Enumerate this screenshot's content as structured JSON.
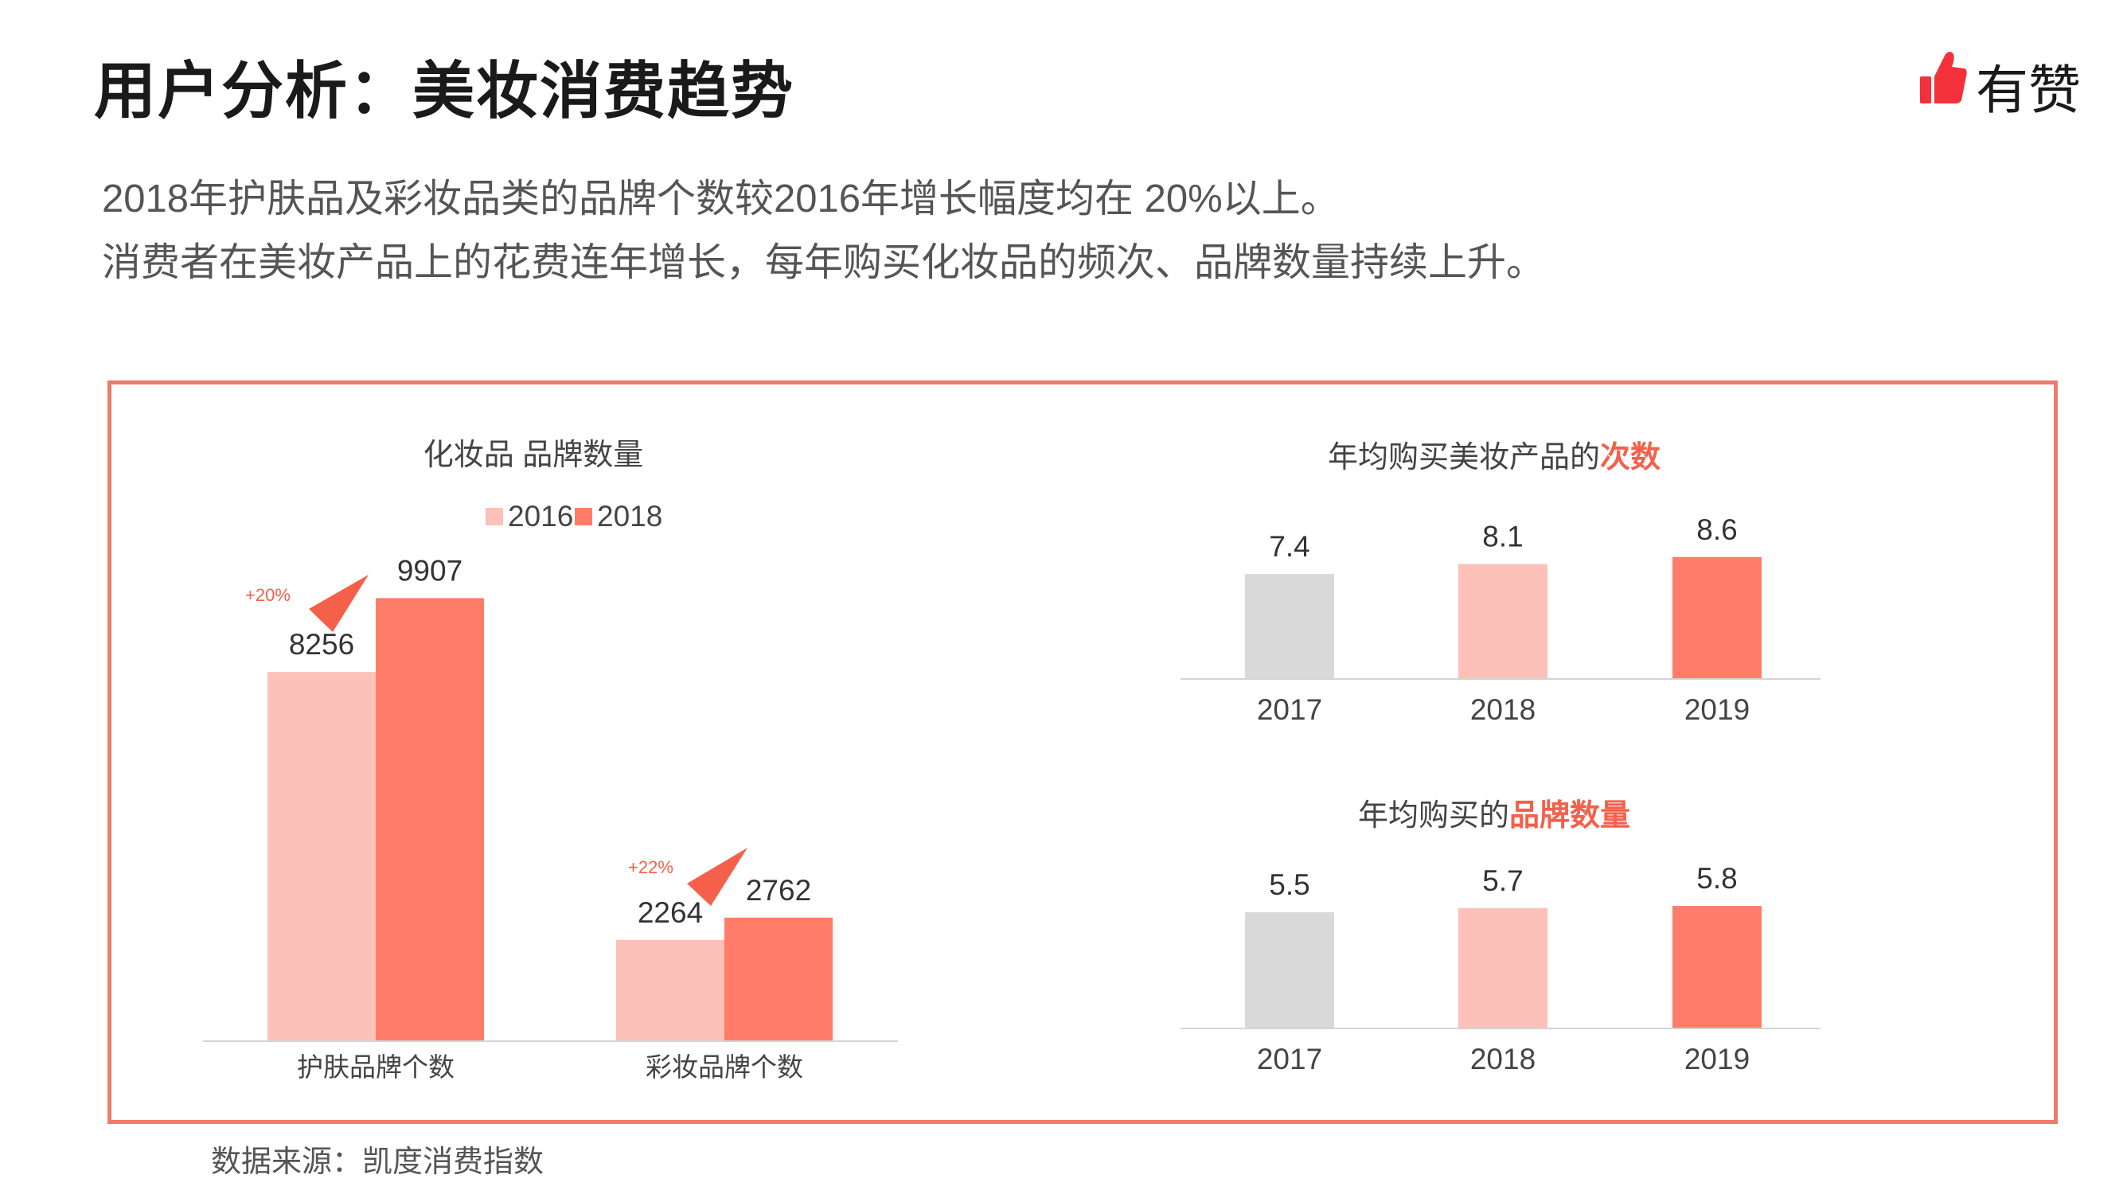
{
  "page": {
    "title": "用户分析：美妆消费趋势",
    "logo_text": "有赞",
    "logo_icon": "thumbs-up-icon",
    "subtitle_line1": "2018年护肤品及彩妆品类的品牌个数较2016年增长幅度均在 20%以上。",
    "subtitle_line2": "消费者在美妆产品上的花费连年增长，每年购买化妆品的频次、品牌数量持续上升。",
    "source": "数据来源：凯度消费指数"
  },
  "colors": {
    "light": "#fcc1b8",
    "dark": "#fe7c68",
    "gray": "#d9d9d9",
    "accent": "#f4604a",
    "border": "#f07a6b"
  },
  "chart_data": [
    {
      "type": "bar",
      "title": "化妆品 品牌数量",
      "categories": [
        "护肤品牌个数",
        "彩妆品牌个数"
      ],
      "series": [
        {
          "name": "2016",
          "values": [
            8256,
            2264
          ]
        },
        {
          "name": "2018",
          "values": [
            9907,
            2762
          ]
        }
      ],
      "annotations": [
        "+20%",
        "+22%"
      ],
      "legend": "top",
      "ylim": [
        0,
        11000
      ],
      "grid": false
    },
    {
      "type": "bar",
      "title_prefix": "年均购买美妆产品的",
      "title_highlight": "次数",
      "categories": [
        "2017",
        "2018",
        "2019"
      ],
      "values": [
        7.4,
        8.1,
        8.6
      ],
      "ylim": [
        0,
        11
      ],
      "grid": false
    },
    {
      "type": "bar",
      "title_prefix": "年均购买的",
      "title_highlight": "品牌数量",
      "categories": [
        "2017",
        "2018",
        "2019"
      ],
      "values": [
        5.5,
        5.7,
        5.8
      ],
      "ylim": [
        0,
        7.5
      ],
      "grid": false
    }
  ]
}
